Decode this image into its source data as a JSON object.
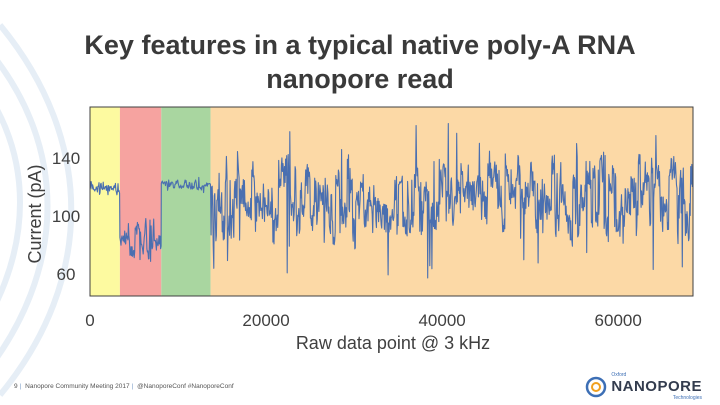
{
  "title": {
    "line1": "Key features in a typical native poly-A RNA",
    "line2": "nanopore read"
  },
  "chart_data": {
    "type": "line",
    "xlabel": "Raw data point @ 3 kHz",
    "ylabel": "Current (pA)",
    "xlim": [
      0,
      68500
    ],
    "ylim": [
      45,
      175
    ],
    "xticks": [
      0,
      20000,
      40000,
      60000
    ],
    "yticks": [
      60,
      100,
      140
    ],
    "grid": false,
    "regions": [
      {
        "start": 0,
        "end": 3400,
        "color": "#fdfaa0"
      },
      {
        "start": 3400,
        "end": 8100,
        "color": "#f6a3a0"
      },
      {
        "start": 8100,
        "end": 13700,
        "color": "#a9d6a0"
      },
      {
        "start": 13700,
        "end": 68500,
        "color": "#fcd9a6"
      }
    ],
    "series": [
      {
        "color": "#4a6fb0",
        "segments": [
          {
            "start": 0,
            "end": 3400,
            "mean": 119,
            "spread": 5,
            "min": 106,
            "max": 133
          },
          {
            "start": 3400,
            "end": 8100,
            "mean": 85,
            "spread": 12,
            "min": 62,
            "max": 112
          },
          {
            "start": 8100,
            "end": 13700,
            "mean": 121,
            "spread": 3,
            "min": 113,
            "max": 127
          },
          {
            "start": 13700,
            "end": 68500,
            "mean": 112,
            "spread": 24,
            "min": 57,
            "max": 165
          }
        ]
      }
    ]
  },
  "footer": {
    "page": "9",
    "event": "Nanopore Community Meeting 2017",
    "tags": "@NanoporeConf  #NanoporeConf"
  },
  "logo": {
    "top_text": "Oxford",
    "brand": "NANOPORE",
    "bottom_text": "Technologies"
  },
  "colors": {
    "title": "#3a3a3a",
    "axis": "#404040",
    "brand_blue": "#3d6fb5"
  }
}
